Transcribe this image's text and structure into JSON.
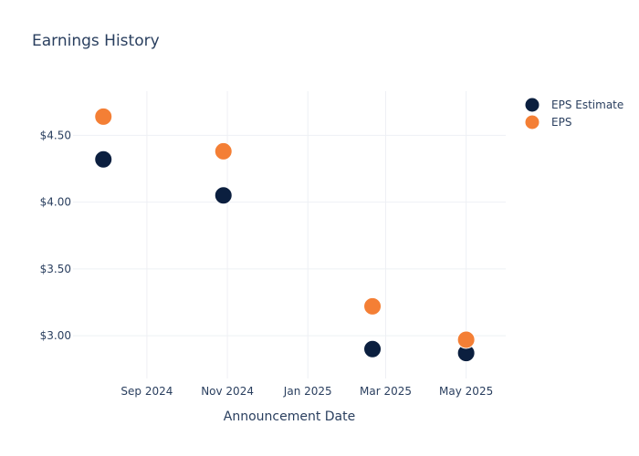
{
  "chart_data": {
    "type": "scatter",
    "title": "Earnings History",
    "xlabel": "Announcement Date",
    "ylabel": "",
    "x_ticks": [
      "Sep 2024",
      "Nov 2024",
      "Jan 2025",
      "Mar 2025",
      "May 2025"
    ],
    "x_tick_dates": [
      "2024-09-01",
      "2024-11-01",
      "2025-01-01",
      "2025-03-01",
      "2025-05-01"
    ],
    "xlim": [
      "2024-07-07",
      "2025-05-31"
    ],
    "y_ticks": [
      "$3.00",
      "$3.50",
      "$4.00",
      "$4.50"
    ],
    "y_tick_values": [
      3.0,
      3.5,
      4.0,
      4.5
    ],
    "ylim": [
      2.68,
      4.83
    ],
    "grid": true,
    "legend_position": "top-right",
    "series": [
      {
        "name": "EPS Estimate",
        "color": "#0b1f3f",
        "points": [
          {
            "x": "2024-07-30",
            "y": 4.32
          },
          {
            "x": "2024-10-29",
            "y": 4.05
          },
          {
            "x": "2025-02-19",
            "y": 2.9
          },
          {
            "x": "2025-05-01",
            "y": 2.87
          }
        ]
      },
      {
        "name": "EPS",
        "color": "#f47f35",
        "points": [
          {
            "x": "2024-07-30",
            "y": 4.64
          },
          {
            "x": "2024-10-29",
            "y": 4.38
          },
          {
            "x": "2025-02-19",
            "y": 3.22
          },
          {
            "x": "2025-05-01",
            "y": 2.97
          }
        ]
      }
    ]
  }
}
